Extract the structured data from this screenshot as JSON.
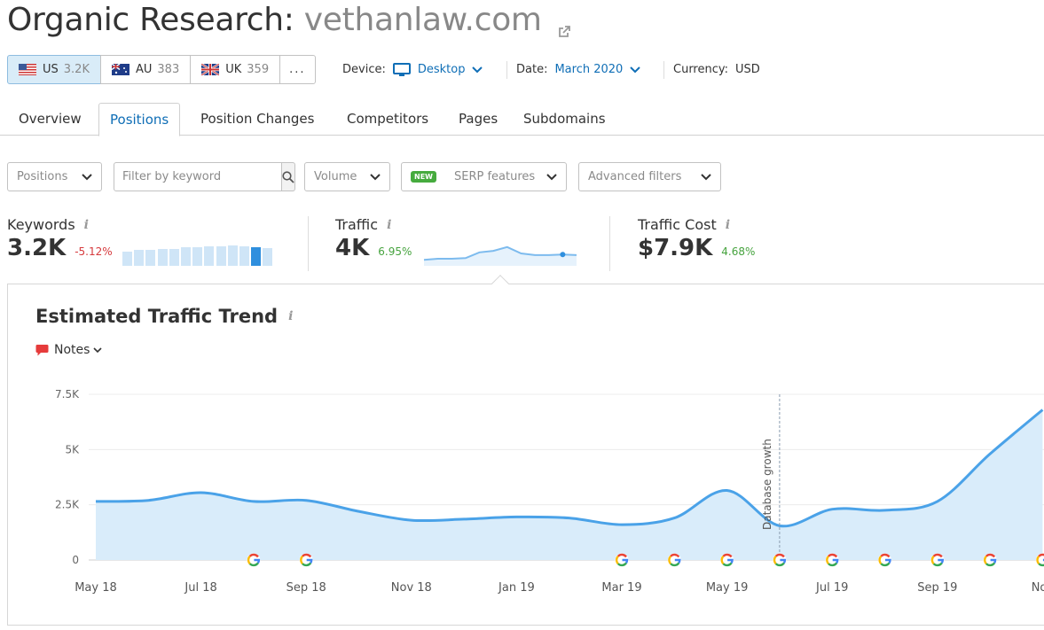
{
  "header": {
    "title_prefix": "Organic Research:",
    "domain": "vethanlaw.com",
    "external_link_icon": "external-link-icon"
  },
  "databases": [
    {
      "code": "US",
      "count": "3.2K",
      "active": true,
      "flag_icon": "us-flag-icon"
    },
    {
      "code": "AU",
      "count": "383",
      "active": false,
      "flag_icon": "au-flag-icon"
    },
    {
      "code": "UK",
      "count": "359",
      "active": false,
      "flag_icon": "uk-flag-icon"
    }
  ],
  "more_label": "...",
  "settings": {
    "device_label": "Device:",
    "device_value": "Desktop",
    "device_icon": "desktop-icon",
    "date_label": "Date:",
    "date_value": "March 2020",
    "currency_label": "Currency:",
    "currency_value": "USD"
  },
  "tabs": [
    {
      "label": "Overview",
      "active": false
    },
    {
      "label": "Positions",
      "active": true
    },
    {
      "label": "Position Changes",
      "active": false
    },
    {
      "label": "Competitors",
      "active": false
    },
    {
      "label": "Pages",
      "active": false
    },
    {
      "label": "Subdomains",
      "active": false
    }
  ],
  "filters": {
    "positions": "Positions",
    "keyword_placeholder": "Filter by keyword",
    "volume": "Volume",
    "new_badge": "NEW",
    "serp": "SERP features",
    "advanced": "Advanced filters"
  },
  "metrics": {
    "keywords": {
      "label": "Keywords",
      "value": "3.2K",
      "change": "-5.12%",
      "bars": [
        0.6,
        0.7,
        0.7,
        0.75,
        0.75,
        0.8,
        0.8,
        0.85,
        0.85,
        0.9,
        0.85,
        0.8,
        0.78
      ],
      "selected_bar": 11
    },
    "traffic": {
      "label": "Traffic",
      "value": "4K",
      "change": "6.95%",
      "spark": [
        0.2,
        0.25,
        0.25,
        0.28,
        0.55,
        0.62,
        0.8,
        0.5,
        0.42,
        0.42,
        0.45,
        0.42
      ]
    },
    "traffic_cost": {
      "label": "Traffic Cost",
      "value": "$7.9K",
      "change": "4.68%"
    },
    "info_glyph": "i"
  },
  "chart": {
    "title": "Estimated Traffic Trend",
    "notes_label": "Notes",
    "annotation": "Database growth",
    "note_icon": "google-g-icon"
  },
  "chart_data": {
    "type": "area",
    "title": "Estimated Traffic Trend",
    "xlabel": "",
    "ylabel": "",
    "ylim": [
      0,
      7500
    ],
    "y_ticks": [
      "0",
      "2.5K",
      "5K",
      "7.5K"
    ],
    "x_tick_labels": [
      "May 18",
      "Jul 18",
      "Sep 18",
      "Nov 18",
      "Jan 19",
      "Mar 19",
      "May 19",
      "Jul 19",
      "Sep 19",
      "Nov"
    ],
    "x": [
      "May 18",
      "Jun 18",
      "Jul 18",
      "Aug 18",
      "Sep 18",
      "Oct 18",
      "Nov 18",
      "Dec 18",
      "Jan 19",
      "Feb 19",
      "Mar 19",
      "Apr 19",
      "May 19",
      "Jun 19",
      "Jul 19",
      "Aug 19",
      "Sep 19",
      "Oct 19",
      "Nov 19"
    ],
    "series": [
      {
        "values": [
          2650,
          2700,
          3050,
          2650,
          2700,
          2200,
          1800,
          1850,
          1950,
          1900,
          1600,
          1900,
          3150,
          1550,
          2300,
          2250,
          2650,
          4800,
          6800
        ]
      }
    ],
    "google_notes_x": [
      "Aug 18",
      "Sep 18",
      "Mar 19",
      "Apr 19",
      "May 19",
      "Jun 19",
      "Jul 19",
      "Aug 19",
      "Sep 19",
      "Oct 19",
      "Nov 19"
    ],
    "annotation_x": "Jun 19",
    "grid": true,
    "legend": "none",
    "colors": {
      "line": "#4aa2e8",
      "fill": "#d9ecfa"
    }
  },
  "colors": {
    "accent": "#0f6eb6",
    "negative": "#d6393c",
    "positive": "#46a33e",
    "active_db": "#d9ecf8"
  }
}
